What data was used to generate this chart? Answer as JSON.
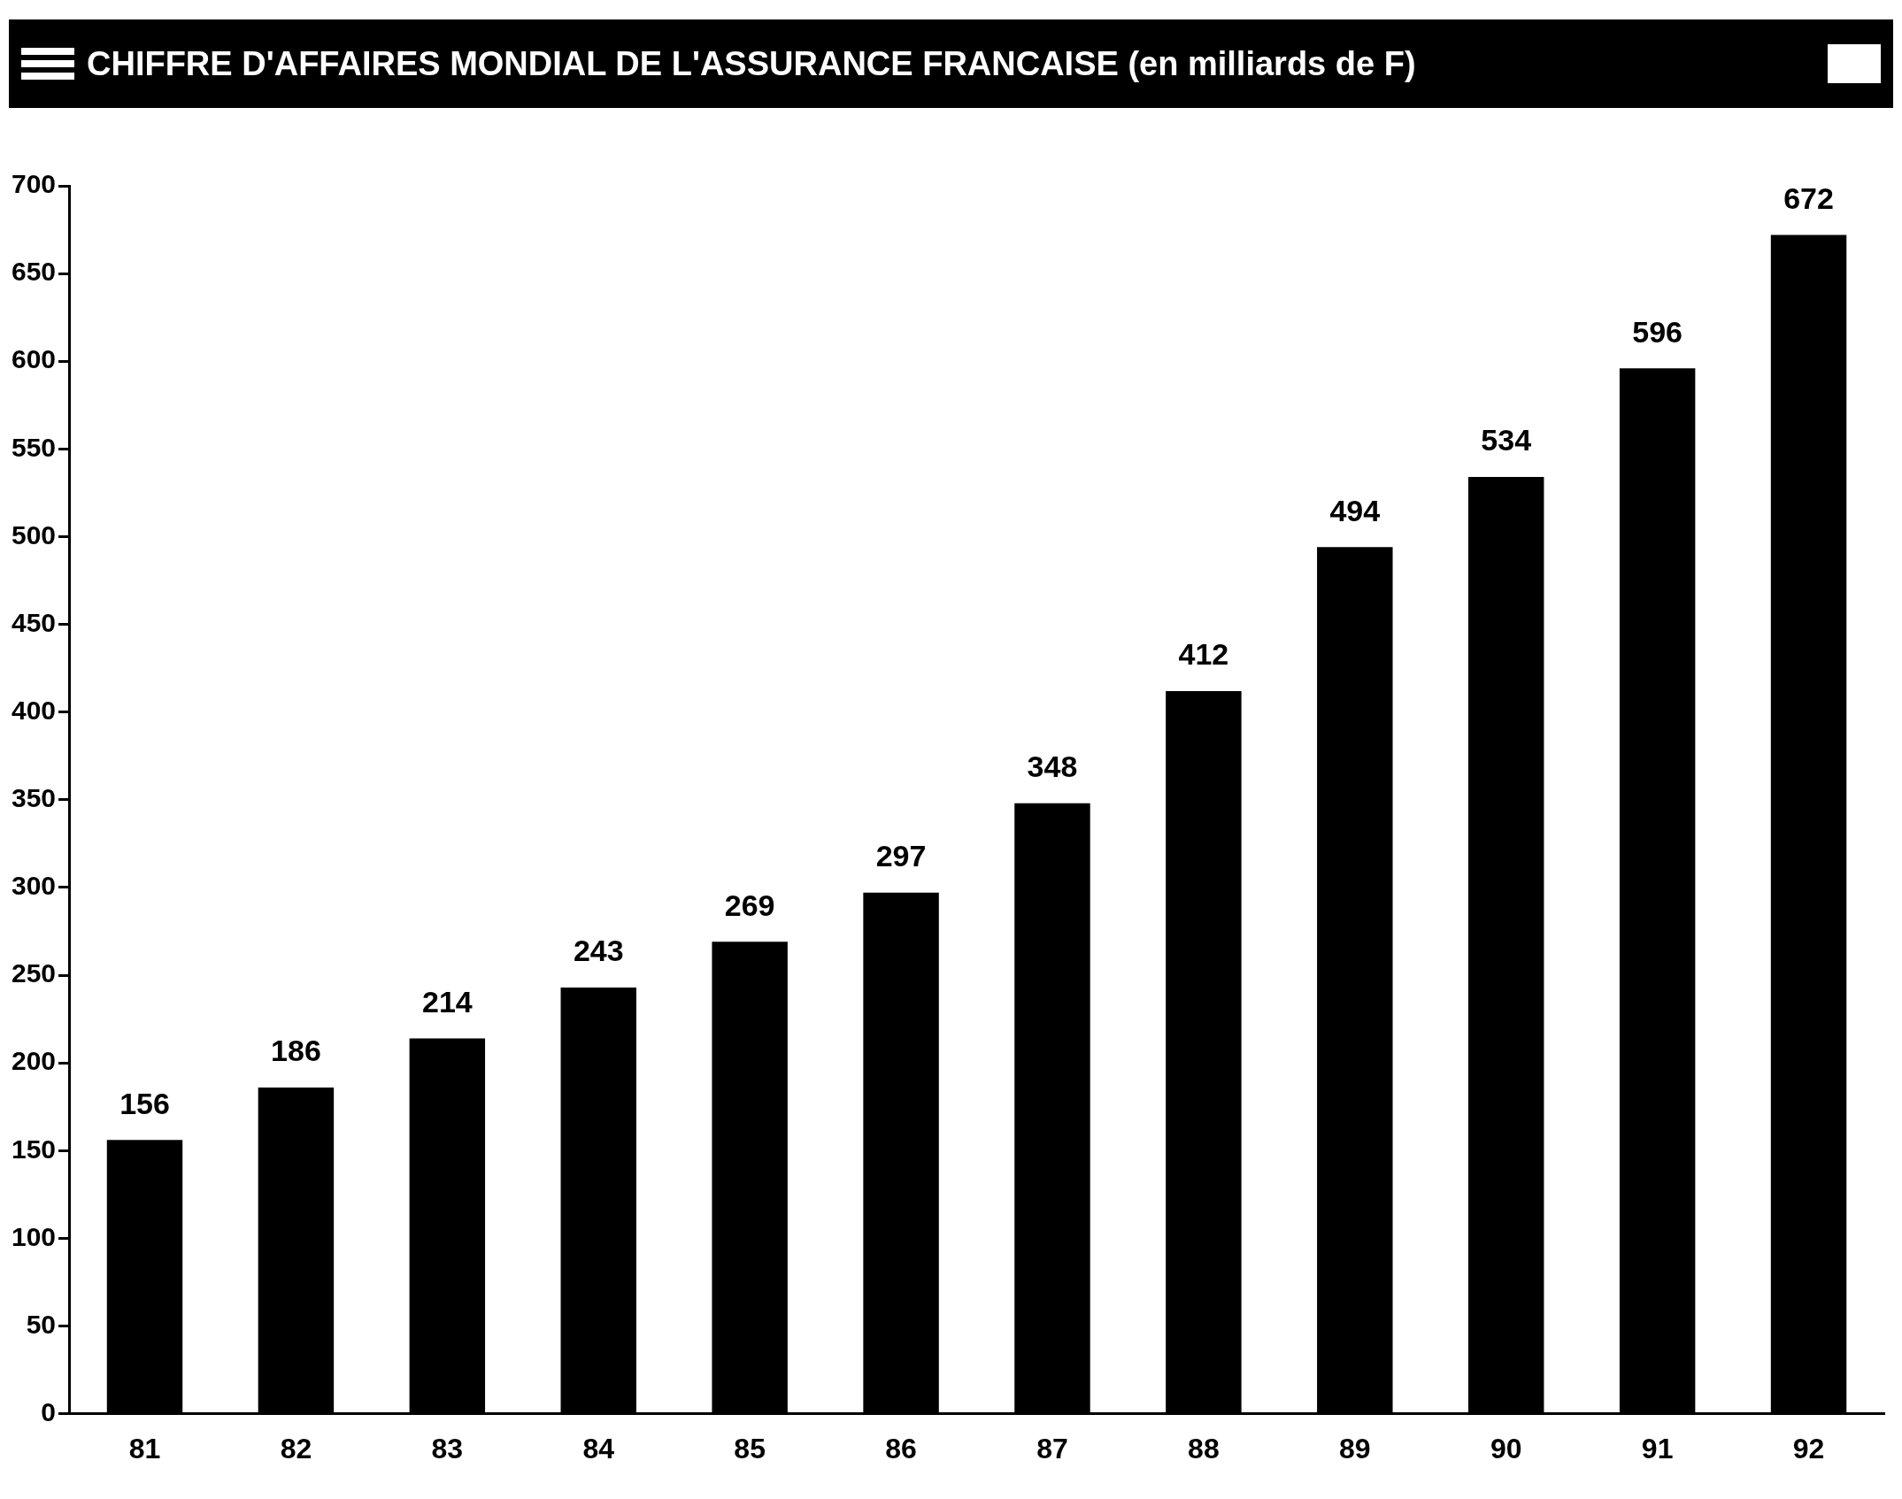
{
  "chart_data": {
    "type": "bar",
    "title": "CHIFFRE D'AFFAIRES MONDIAL DE L'ASSURANCE FRANCAISE (en milliards de F)",
    "categories": [
      "81",
      "82",
      "83",
      "84",
      "85",
      "86",
      "87",
      "88",
      "89",
      "90",
      "91",
      "92"
    ],
    "values": [
      156,
      186,
      214,
      243,
      269,
      297,
      348,
      412,
      494,
      534,
      596,
      672
    ],
    "color": "#000000",
    "ylim": [
      0,
      700
    ],
    "yticks": [
      0,
      50,
      100,
      150,
      200,
      250,
      300,
      350,
      400,
      450,
      500,
      550,
      600,
      650,
      700
    ],
    "grid": false,
    "data_labels": true
  }
}
